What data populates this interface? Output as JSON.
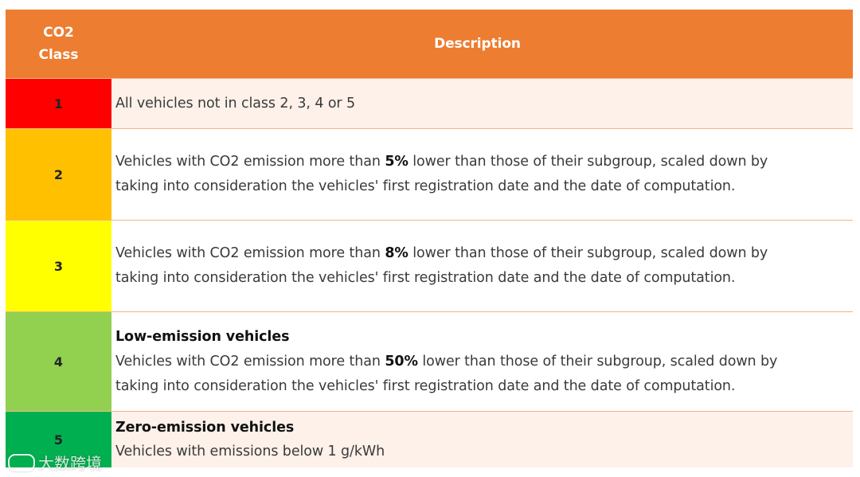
{
  "header": {
    "class_line1": "CO2",
    "class_line2": "Class",
    "description": "Description"
  },
  "colors": {
    "header": "#ed7d31",
    "class1": "#ff0000",
    "class2": "#ffc000",
    "class3": "#ffff00",
    "class4": "#92d050",
    "class5": "#00b050"
  },
  "rows": [
    {
      "class": "1",
      "text": "All vehicles not in class 2, 3, 4 or 5"
    },
    {
      "class": "2",
      "pre": "Vehicles with CO2 emission more than ",
      "bold": "5%",
      "post": " lower than those of their subgroup, scaled down by",
      "line2": "taking into consideration the vehicles' first registration date and the date of computation."
    },
    {
      "class": "3",
      "pre": "Vehicles with CO2 emission more than ",
      "bold": "8%",
      "post": " lower than those of their subgroup, scaled down by",
      "line2": "taking into consideration the vehicles' first registration date and the date of computation."
    },
    {
      "class": "4",
      "title": "Low-emission vehicles",
      "pre": "Vehicles with CO2 emission more than ",
      "bold": "50%",
      "post": " lower than those of their subgroup, scaled down by",
      "line2": "taking into consideration the vehicles' first registration date and the date of computation."
    },
    {
      "class": "5",
      "title": "Zero-emission vehicles",
      "text": "Vehicles with emissions below 1 g/kWh"
    }
  ],
  "watermark": "大数跨境"
}
